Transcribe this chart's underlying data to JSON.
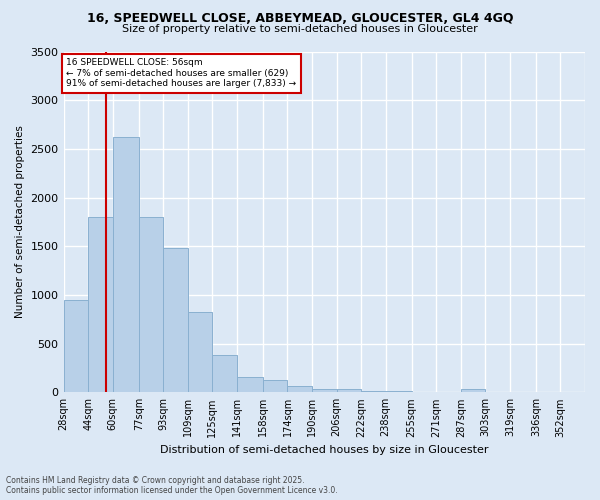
{
  "title": "16, SPEEDWELL CLOSE, ABBEYMEAD, GLOUCESTER, GL4 4GQ",
  "subtitle": "Size of property relative to semi-detached houses in Gloucester",
  "xlabel": "Distribution of semi-detached houses by size in Gloucester",
  "ylabel": "Number of semi-detached properties",
  "footer1": "Contains HM Land Registry data © Crown copyright and database right 2025.",
  "footer2": "Contains public sector information licensed under the Open Government Licence v3.0.",
  "annotation_line1": "16 SPEEDWELL CLOSE: 56sqm",
  "annotation_line2": "← 7% of semi-detached houses are smaller (629)",
  "annotation_line3": "91% of semi-detached houses are larger (7,833) →",
  "property_size": 56,
  "bar_labels": [
    "28sqm",
    "44sqm",
    "60sqm",
    "77sqm",
    "93sqm",
    "109sqm",
    "125sqm",
    "141sqm",
    "158sqm",
    "174sqm",
    "190sqm",
    "206sqm",
    "222sqm",
    "238sqm",
    "255sqm",
    "271sqm",
    "287sqm",
    "303sqm",
    "319sqm",
    "336sqm",
    "352sqm"
  ],
  "bar_left_edges": [
    28,
    44,
    60,
    77,
    93,
    109,
    125,
    141,
    158,
    174,
    190,
    206,
    222,
    238,
    255,
    271,
    287,
    303,
    319,
    336,
    352
  ],
  "bar_widths": [
    16,
    16,
    17,
    16,
    16,
    16,
    16,
    17,
    16,
    16,
    16,
    16,
    16,
    17,
    16,
    16,
    16,
    16,
    17,
    16,
    16
  ],
  "bar_heights": [
    950,
    1800,
    2620,
    1800,
    1480,
    820,
    380,
    155,
    130,
    65,
    30,
    30,
    10,
    10,
    5,
    5,
    35,
    5,
    5,
    5,
    5
  ],
  "bar_color": "#b8d0e8",
  "bar_edge_color": "#8ab0d0",
  "line_color": "#cc0000",
  "background_color": "#dce8f5",
  "plot_bg_color": "#dce8f5",
  "grid_color": "#ffffff",
  "ylim": [
    0,
    3500
  ],
  "yticks": [
    0,
    500,
    1000,
    1500,
    2000,
    2500,
    3000,
    3500
  ],
  "title_fontsize": 9,
  "subtitle_fontsize": 8,
  "ylabel_fontsize": 7.5,
  "xlabel_fontsize": 8,
  "tick_fontsize": 7,
  "footer_fontsize": 5.5
}
